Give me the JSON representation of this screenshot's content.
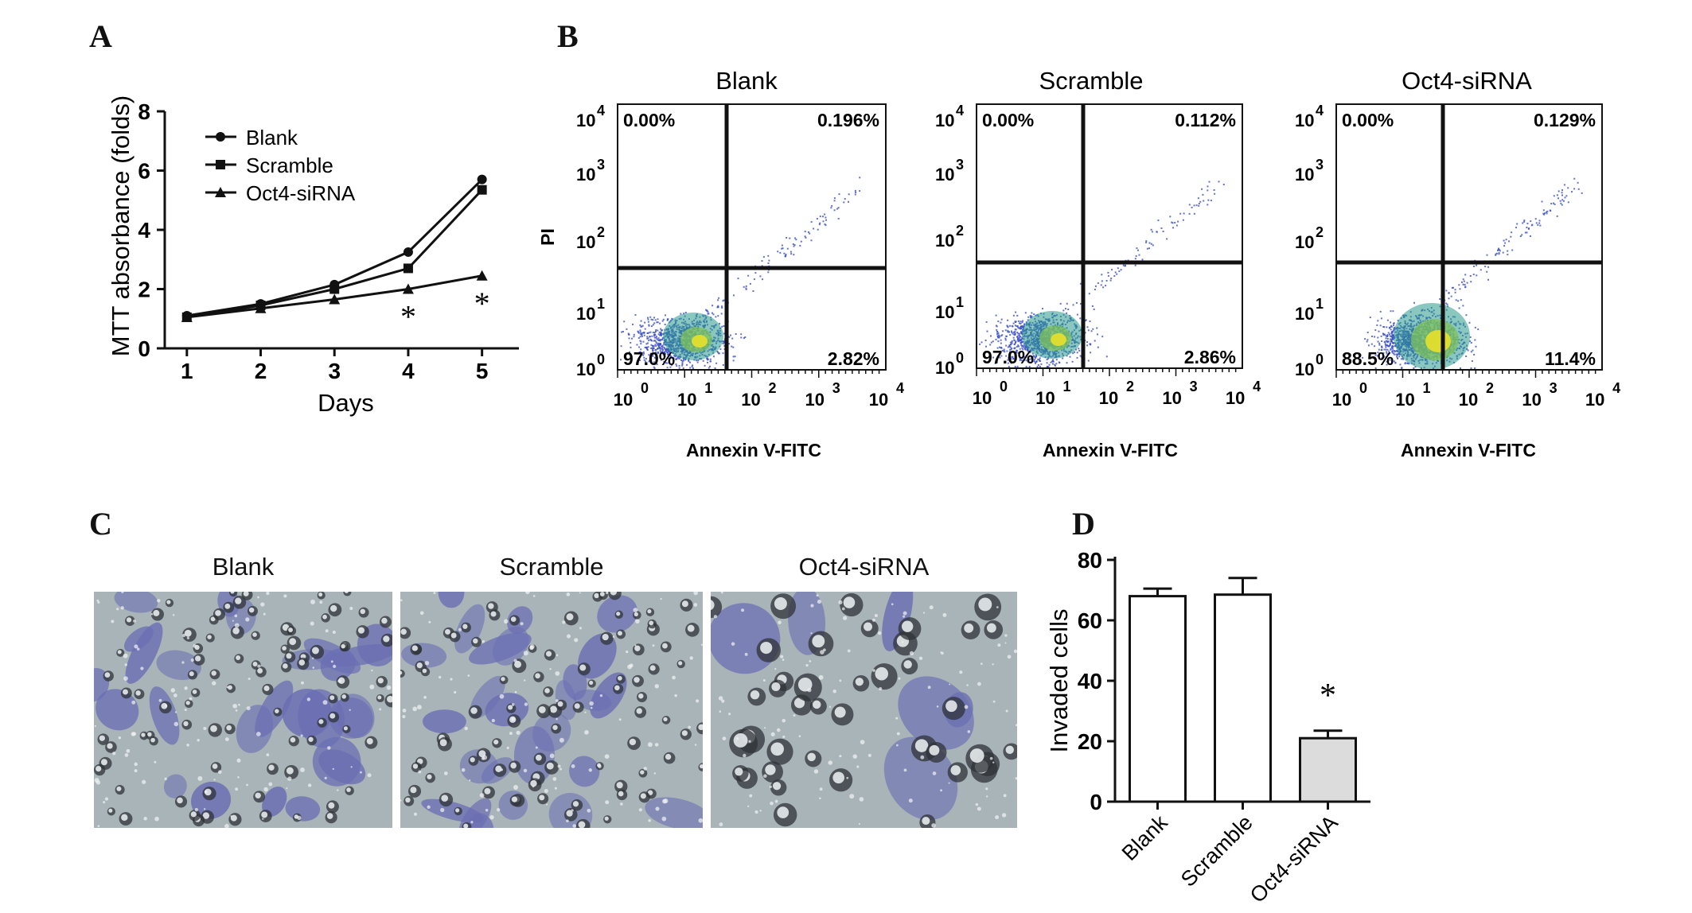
{
  "panels": {
    "A": "A",
    "B": "B",
    "C": "C",
    "D": "D"
  },
  "colors": {
    "axis": "#111111",
    "bar_control": "#ffffff",
    "bar_knockdown": "#dcdcdc",
    "flow_dense": "#e8e02a",
    "flow_sparse": "#3b4fc4",
    "stain": "#6b6fb3",
    "background_field": "#a9b4b8"
  },
  "chart_data": [
    {
      "id": "A",
      "type": "line",
      "xlabel": "Days",
      "ylabel": "MTT absorbance (folds)",
      "x": [
        1,
        2,
        3,
        4,
        5
      ],
      "xlim": [
        0.7,
        5.5
      ],
      "ylim": [
        0,
        8
      ],
      "yticks": [
        0,
        2,
        4,
        6,
        8
      ],
      "legend_position": "top-left",
      "series": [
        {
          "name": "Blank",
          "marker": "circle",
          "values": [
            1.1,
            1.5,
            2.15,
            3.25,
            5.7
          ]
        },
        {
          "name": "Scramble",
          "marker": "square",
          "values": [
            1.05,
            1.45,
            2.0,
            2.7,
            5.35
          ]
        },
        {
          "name": "Oct4-siRNA",
          "marker": "triangle",
          "values": [
            1.05,
            1.35,
            1.65,
            2.0,
            2.45
          ]
        }
      ],
      "annotations": [
        {
          "x": 4,
          "y": 1.3,
          "text": "*"
        },
        {
          "x": 5,
          "y": 1.75,
          "text": "*"
        }
      ]
    },
    {
      "id": "B",
      "type": "scatter",
      "xlabel": "Annexin V-FITC",
      "ylabel": "PI",
      "axis_scale": "log",
      "tick_labels": [
        "10",
        "10",
        "10",
        "10",
        "10"
      ],
      "tick_exponents": [
        "0",
        "1",
        "2",
        "3",
        "4"
      ],
      "plots": [
        {
          "title": "Blank",
          "quadrants": {
            "upper_left": "0.00%",
            "upper_right": "0.196%",
            "lower_left": "97.0%",
            "lower_right": "2.82%"
          }
        },
        {
          "title": "Scramble",
          "quadrants": {
            "upper_left": "0.00%",
            "upper_right": "0.112%",
            "lower_left": "97.0%",
            "lower_right": "2.86%"
          }
        },
        {
          "title": "Oct4-siRNA",
          "quadrants": {
            "upper_left": "0.00%",
            "upper_right": "0.129%",
            "lower_left": "88.5%",
            "lower_right": "11.4%"
          }
        }
      ]
    },
    {
      "id": "D",
      "type": "bar",
      "ylabel": "Invaded cells",
      "categories": [
        "Blank",
        "Scramble",
        "Oct4-siRNA"
      ],
      "values": [
        68,
        68.5,
        21
      ],
      "errors": [
        2.5,
        5.5,
        2.5
      ],
      "ylim": [
        0,
        80
      ],
      "yticks": [
        0,
        20,
        40,
        60,
        80
      ],
      "annotations": [
        {
          "category": "Oct4-siRNA",
          "text": "*"
        }
      ]
    }
  ],
  "photos": [
    {
      "title": "Blank",
      "name": "blank-micrograph"
    },
    {
      "title": "Scramble",
      "name": "scramble-micrograph"
    },
    {
      "title": "Oct4-siRNA",
      "name": "oct4-sirna-micrograph"
    }
  ]
}
